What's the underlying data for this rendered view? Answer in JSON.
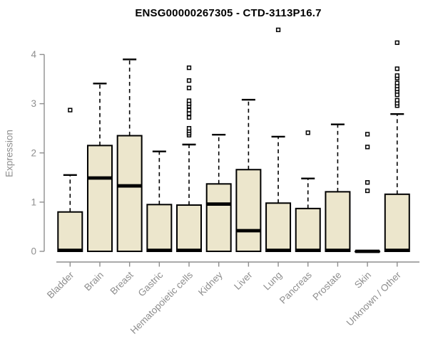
{
  "colors": {
    "background": "#ffffff",
    "box_fill": "#ece6cc",
    "box_stroke": "#000000",
    "median_color": "#000000",
    "whisker_color": "#000000",
    "outlier_stroke": "#000000",
    "outlier_fill": "#ffffff",
    "axis_gray": "#8e8e8e",
    "title_color": "#000000"
  },
  "chart_data": {
    "type": "boxplot",
    "title": "ENSG00000267305 - CTD-3113P16.7",
    "xlabel": "",
    "ylabel": "Expression",
    "ylim": [
      0,
      4.55
    ],
    "yticks": [
      0,
      1,
      2,
      3,
      4
    ],
    "grid": false,
    "legend": "none",
    "categories": [
      "Bladder",
      "Brain",
      "Breast",
      "Gastric",
      "Hematopoietic cells",
      "Kidney",
      "Liver",
      "Lung",
      "Pancreas",
      "Prostate",
      "Skin",
      "Unknown / Other"
    ],
    "series": [
      {
        "name": "Bladder",
        "whisker_low": 0,
        "q1": 0,
        "median": 0.02,
        "q3": 0.8,
        "whisker_high": 1.55,
        "outliers": [
          2.87
        ]
      },
      {
        "name": "Brain",
        "whisker_low": 0,
        "q1": 0,
        "median": 1.49,
        "q3": 2.15,
        "whisker_high": 3.41,
        "outliers": []
      },
      {
        "name": "Breast",
        "whisker_low": 0,
        "q1": 0,
        "median": 1.33,
        "q3": 2.35,
        "whisker_high": 3.9,
        "outliers": []
      },
      {
        "name": "Gastric",
        "whisker_low": 0,
        "q1": 0,
        "median": 0.02,
        "q3": 0.95,
        "whisker_high": 2.03,
        "outliers": []
      },
      {
        "name": "Hematopoietic cells",
        "whisker_low": 0,
        "q1": 0,
        "median": 0.02,
        "q3": 0.94,
        "whisker_high": 2.17,
        "outliers": [
          2.36,
          2.4,
          2.45,
          2.5,
          2.72,
          2.8,
          2.87,
          2.95,
          3.0,
          3.06,
          3.32,
          3.47,
          3.73
        ]
      },
      {
        "name": "Kidney",
        "whisker_low": 0,
        "q1": 0,
        "median": 0.96,
        "q3": 1.37,
        "whisker_high": 2.37,
        "outliers": []
      },
      {
        "name": "Liver",
        "whisker_low": 0,
        "q1": 0,
        "median": 0.42,
        "q3": 1.66,
        "whisker_high": 3.08,
        "outliers": []
      },
      {
        "name": "Lung",
        "whisker_low": 0,
        "q1": 0,
        "median": 0.02,
        "q3": 0.98,
        "whisker_high": 2.33,
        "outliers": [
          4.5
        ]
      },
      {
        "name": "Pancreas",
        "whisker_low": 0,
        "q1": 0,
        "median": 0.02,
        "q3": 0.87,
        "whisker_high": 1.48,
        "outliers": [
          2.41
        ]
      },
      {
        "name": "Prostate",
        "whisker_low": 0,
        "q1": 0,
        "median": 0.02,
        "q3": 1.21,
        "whisker_high": 2.58,
        "outliers": []
      },
      {
        "name": "Skin",
        "whisker_low": 0,
        "q1": 0,
        "median": 0.0,
        "q3": 0.0,
        "whisker_high": 0.0,
        "outliers": [
          1.23,
          1.4,
          2.12,
          2.38
        ]
      },
      {
        "name": "Unknown / Other",
        "whisker_low": 0,
        "q1": 0,
        "median": 0.02,
        "q3": 1.16,
        "whisker_high": 2.79,
        "outliers": [
          2.96,
          3.01,
          3.07,
          3.18,
          3.25,
          3.3,
          3.36,
          3.42,
          3.52,
          3.57,
          3.71,
          4.24
        ]
      }
    ]
  }
}
